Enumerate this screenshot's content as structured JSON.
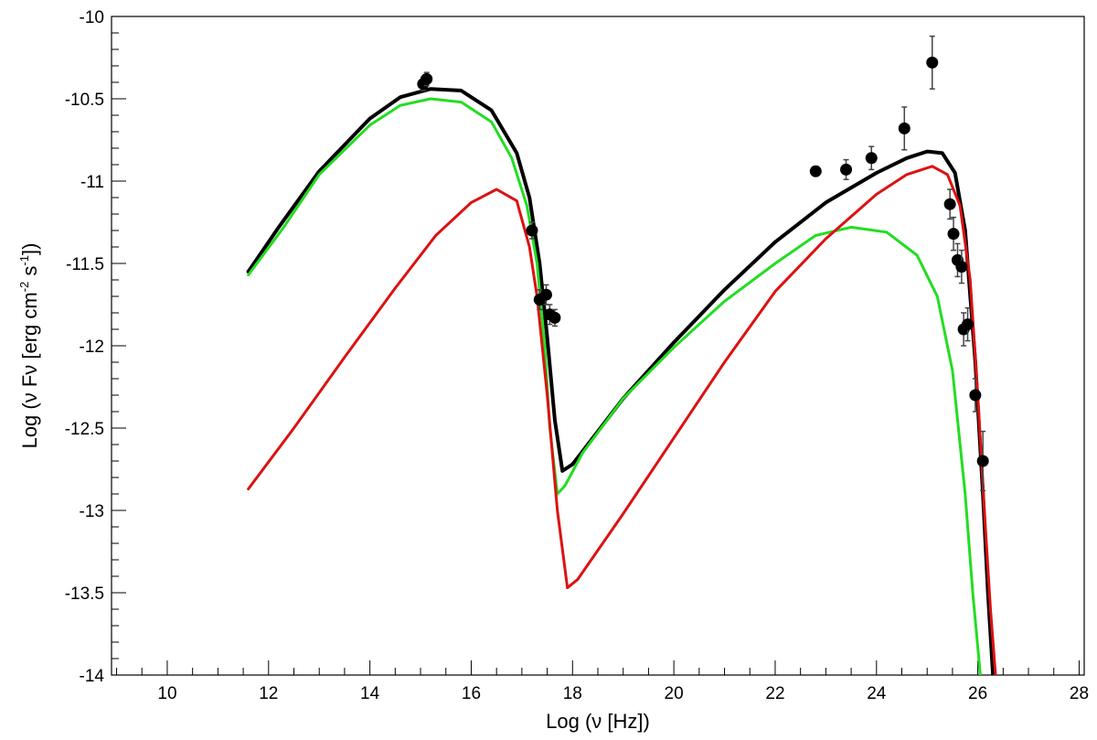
{
  "chart_data": {
    "type": "scatter",
    "title": "",
    "xlabel": "Log (ν [Hz])",
    "ylabel_parts": [
      "Log (ν Fν [erg cm",
      "-2",
      " s",
      "-1",
      "])"
    ],
    "xlim": [
      8.9,
      28.1
    ],
    "ylim": [
      -14,
      -10
    ],
    "x_ticks": [
      "10",
      "12",
      "14",
      "16",
      "18",
      "20",
      "22",
      "24",
      "26",
      "28"
    ],
    "y_ticks": [
      "-10",
      "-10.5",
      "-11",
      "-11.5",
      "-12",
      "-12.5",
      "-13",
      "-13.5",
      "-14"
    ],
    "grid": false,
    "colors": {
      "total": "#000000",
      "green": "#22dd22",
      "red": "#dd1111",
      "points": "#000000",
      "errorbars": "#444444"
    },
    "series": [
      {
        "kind": "line",
        "color_key": "total",
        "points": [
          [
            11.6,
            -11.55
          ],
          [
            12.2,
            -11.28
          ],
          [
            13,
            -10.94
          ],
          [
            14,
            -10.62
          ],
          [
            14.6,
            -10.49
          ],
          [
            15.2,
            -10.44
          ],
          [
            15.8,
            -10.45
          ],
          [
            16.4,
            -10.57
          ],
          [
            16.9,
            -10.83
          ],
          [
            17.15,
            -11.1
          ],
          [
            17.35,
            -11.5
          ],
          [
            17.5,
            -11.95
          ],
          [
            17.65,
            -12.45
          ],
          [
            17.8,
            -12.76
          ],
          [
            18,
            -12.72
          ],
          [
            18.5,
            -12.52
          ],
          [
            19,
            -12.32
          ],
          [
            20,
            -11.98
          ],
          [
            21,
            -11.66
          ],
          [
            22,
            -11.37
          ],
          [
            23,
            -11.13
          ],
          [
            24,
            -10.95
          ],
          [
            24.6,
            -10.86
          ],
          [
            25,
            -10.82
          ],
          [
            25.3,
            -10.83
          ],
          [
            25.55,
            -10.95
          ],
          [
            25.75,
            -11.3
          ],
          [
            25.95,
            -12.1
          ],
          [
            26.1,
            -12.9
          ],
          [
            26.2,
            -13.5
          ],
          [
            26.3,
            -14
          ]
        ]
      },
      {
        "kind": "line",
        "color_key": "green",
        "points": [
          [
            11.6,
            -11.57
          ],
          [
            12.3,
            -11.28
          ],
          [
            13,
            -10.96
          ],
          [
            14,
            -10.66
          ],
          [
            14.6,
            -10.54
          ],
          [
            15.2,
            -10.5
          ],
          [
            15.8,
            -10.52
          ],
          [
            16.4,
            -10.64
          ],
          [
            16.8,
            -10.86
          ],
          [
            17.1,
            -11.15
          ],
          [
            17.3,
            -11.5
          ],
          [
            17.45,
            -12
          ],
          [
            17.55,
            -12.5
          ],
          [
            17.7,
            -12.9
          ],
          [
            17.85,
            -12.85
          ],
          [
            18.2,
            -12.65
          ],
          [
            19,
            -12.32
          ],
          [
            20,
            -12.01
          ],
          [
            21,
            -11.73
          ],
          [
            22,
            -11.5
          ],
          [
            22.8,
            -11.33
          ],
          [
            23.5,
            -11.28
          ],
          [
            24.2,
            -11.31
          ],
          [
            24.8,
            -11.45
          ],
          [
            25.2,
            -11.7
          ],
          [
            25.5,
            -12.15
          ],
          [
            25.75,
            -12.9
          ],
          [
            25.9,
            -13.5
          ],
          [
            26.05,
            -14
          ]
        ]
      },
      {
        "kind": "line",
        "color_key": "red",
        "points": [
          [
            11.6,
            -12.87
          ],
          [
            12.5,
            -12.5
          ],
          [
            13.5,
            -12.07
          ],
          [
            14.5,
            -11.65
          ],
          [
            15.3,
            -11.33
          ],
          [
            16,
            -11.13
          ],
          [
            16.5,
            -11.05
          ],
          [
            16.9,
            -11.12
          ],
          [
            17.15,
            -11.4
          ],
          [
            17.3,
            -11.7
          ],
          [
            17.5,
            -12.3
          ],
          [
            17.7,
            -13.0
          ],
          [
            17.9,
            -13.47
          ],
          [
            18.1,
            -13.42
          ],
          [
            19,
            -13.02
          ],
          [
            20,
            -12.56
          ],
          [
            21,
            -12.1
          ],
          [
            22,
            -11.67
          ],
          [
            23,
            -11.35
          ],
          [
            24,
            -11.08
          ],
          [
            24.6,
            -10.96
          ],
          [
            25.1,
            -10.91
          ],
          [
            25.4,
            -10.96
          ],
          [
            25.65,
            -11.15
          ],
          [
            25.85,
            -11.6
          ],
          [
            26.0,
            -12.3
          ],
          [
            26.15,
            -13.1
          ],
          [
            26.25,
            -13.6
          ],
          [
            26.35,
            -14
          ]
        ]
      }
    ],
    "data_points": [
      {
        "x": 15.05,
        "y": -10.41,
        "yerr": 0.04
      },
      {
        "x": 15.12,
        "y": -10.38,
        "yerr": 0.04
      },
      {
        "x": 17.2,
        "y": -11.3,
        "yerr": 0.05
      },
      {
        "x": 17.35,
        "y": -11.72,
        "yerr": 0.06
      },
      {
        "x": 17.48,
        "y": -11.69,
        "yerr": 0.06
      },
      {
        "x": 17.55,
        "y": -11.81,
        "yerr": 0.06
      },
      {
        "x": 17.65,
        "y": -11.83,
        "yerr": 0.05
      },
      {
        "x": 22.8,
        "y": -10.94,
        "yerr": 0.03
      },
      {
        "x": 23.4,
        "y": -10.93,
        "yerr": 0.06
      },
      {
        "x": 23.9,
        "y": -10.86,
        "yerr": 0.07
      },
      {
        "x": 24.55,
        "y": -10.68,
        "yerr": 0.13
      },
      {
        "x": 25.1,
        "y": -10.28,
        "yerr": 0.16
      },
      {
        "x": 25.45,
        "y": -11.14,
        "yerr": 0.09
      },
      {
        "x": 25.52,
        "y": -11.32,
        "yerr": 0.1
      },
      {
        "x": 25.6,
        "y": -11.48,
        "yerr": 0.1
      },
      {
        "x": 25.68,
        "y": -11.52,
        "yerr": 0.1
      },
      {
        "x": 25.72,
        "y": -11.9,
        "yerr": 0.1
      },
      {
        "x": 25.8,
        "y": -11.87,
        "yerr": 0.1
      },
      {
        "x": 25.95,
        "y": -12.3,
        "yerr": 0.1
      },
      {
        "x": 26.1,
        "y": -12.7,
        "yerr": 0.18
      }
    ]
  }
}
